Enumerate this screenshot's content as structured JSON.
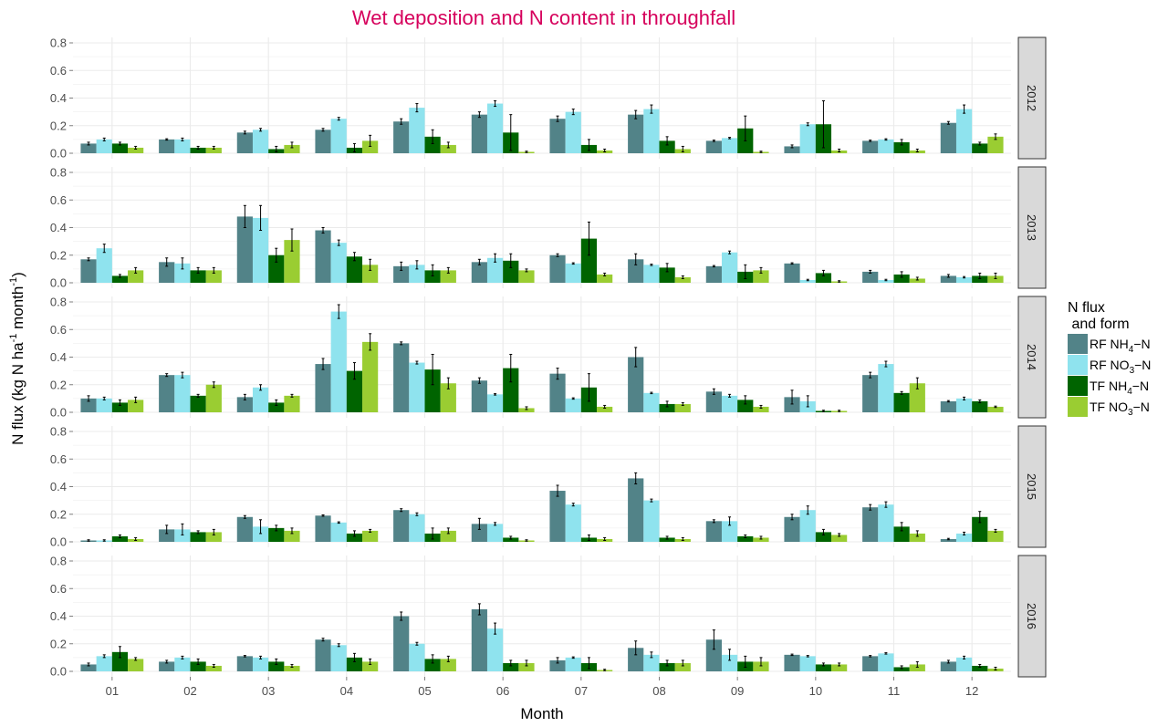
{
  "chart_data": {
    "type": "bar",
    "title": "Wet deposition and N content in throughfall",
    "xlabel": "Month",
    "ylabel_main": "N flux  (kg N ha",
    "ylabel_sup1": "-1",
    "ylabel_mid": " month",
    "ylabel_sup2": "-1",
    "ylabel_end": ")",
    "ylim": [
      0,
      0.8
    ],
    "yticks": [
      "0.0",
      "0.2",
      "0.4",
      "0.6",
      "0.8"
    ],
    "categories": [
      "01",
      "02",
      "03",
      "04",
      "05",
      "06",
      "07",
      "08",
      "09",
      "10",
      "11",
      "12"
    ],
    "grid": true,
    "legend": {
      "title_line1": "N flux",
      "title_line2": " and form",
      "placement": "right",
      "items": [
        {
          "prefix": "RF NH",
          "sub": "4",
          "suffix": "−N",
          "color": "#528388"
        },
        {
          "prefix": "RF NO",
          "sub": "3",
          "suffix": "−N",
          "color": "#8fe3ee"
        },
        {
          "prefix": "TF NH",
          "sub": "4",
          "suffix": "−N",
          "color": "#006400"
        },
        {
          "prefix": "TF NO",
          "sub": "3",
          "suffix": "−N",
          "color": "#9acd32"
        }
      ]
    },
    "panels": [
      {
        "label": "2012",
        "values": [
          [
            0.07,
            0.1,
            0.15,
            0.17,
            0.23,
            0.28,
            0.25,
            0.28,
            0.09,
            0.05,
            0.09,
            0.22
          ],
          [
            0.1,
            0.1,
            0.17,
            0.25,
            0.33,
            0.36,
            0.3,
            0.32,
            0.11,
            0.21,
            0.1,
            0.32
          ],
          [
            0.07,
            0.04,
            0.03,
            0.04,
            0.12,
            0.15,
            0.06,
            0.09,
            0.18,
            0.21,
            0.08,
            0.07
          ],
          [
            0.04,
            0.04,
            0.06,
            0.09,
            0.06,
            0.01,
            0.02,
            0.03,
            0.01,
            0.02,
            0.02,
            0.12
          ]
        ],
        "errors": [
          [
            0.01,
            0.005,
            0.01,
            0.01,
            0.02,
            0.02,
            0.02,
            0.03,
            0.005,
            0.01,
            0.005,
            0.01
          ],
          [
            0.01,
            0.01,
            0.01,
            0.01,
            0.03,
            0.02,
            0.02,
            0.03,
            0.005,
            0.01,
            0.005,
            0.03
          ],
          [
            0.01,
            0.01,
            0.02,
            0.03,
            0.05,
            0.13,
            0.04,
            0.03,
            0.09,
            0.17,
            0.02,
            0.01
          ],
          [
            0.01,
            0.01,
            0.02,
            0.04,
            0.02,
            0.005,
            0.01,
            0.02,
            0.005,
            0.01,
            0.01,
            0.02
          ]
        ]
      },
      {
        "label": "2013",
        "values": [
          [
            0.17,
            0.15,
            0.48,
            0.38,
            0.12,
            0.15,
            0.2,
            0.17,
            0.12,
            0.14,
            0.08,
            0.05
          ],
          [
            0.25,
            0.14,
            0.47,
            0.29,
            0.13,
            0.18,
            0.14,
            0.13,
            0.22,
            0.02,
            0.02,
            0.04
          ],
          [
            0.05,
            0.09,
            0.2,
            0.19,
            0.09,
            0.16,
            0.32,
            0.11,
            0.08,
            0.07,
            0.06,
            0.05
          ],
          [
            0.09,
            0.09,
            0.31,
            0.13,
            0.09,
            0.09,
            0.06,
            0.04,
            0.09,
            0.01,
            0.03,
            0.05
          ]
        ],
        "errors": [
          [
            0.01,
            0.03,
            0.08,
            0.02,
            0.03,
            0.02,
            0.01,
            0.04,
            0.005,
            0.005,
            0.01,
            0.01
          ],
          [
            0.03,
            0.04,
            0.09,
            0.02,
            0.03,
            0.03,
            0.005,
            0.005,
            0.01,
            0.005,
            0.005,
            0.005
          ],
          [
            0.01,
            0.02,
            0.05,
            0.03,
            0.04,
            0.05,
            0.12,
            0.03,
            0.05,
            0.02,
            0.02,
            0.02
          ],
          [
            0.02,
            0.02,
            0.08,
            0.04,
            0.02,
            0.01,
            0.01,
            0.01,
            0.02,
            0.005,
            0.01,
            0.02
          ]
        ]
      },
      {
        "label": "2014",
        "values": [
          [
            0.1,
            0.27,
            0.11,
            0.35,
            0.5,
            0.23,
            0.28,
            0.4,
            0.15,
            0.11,
            0.27,
            0.08
          ],
          [
            0.1,
            0.27,
            0.18,
            0.73,
            0.36,
            0.13,
            0.1,
            0.14,
            0.12,
            0.08,
            0.35,
            0.1
          ],
          [
            0.07,
            0.12,
            0.07,
            0.3,
            0.31,
            0.32,
            0.18,
            0.06,
            0.09,
            0.01,
            0.14,
            0.08
          ],
          [
            0.09,
            0.2,
            0.12,
            0.51,
            0.21,
            0.03,
            0.04,
            0.06,
            0.04,
            0.01,
            0.21,
            0.04
          ]
        ],
        "errors": [
          [
            0.02,
            0.01,
            0.02,
            0.04,
            0.01,
            0.02,
            0.04,
            0.07,
            0.02,
            0.05,
            0.02,
            0.005
          ],
          [
            0.01,
            0.02,
            0.02,
            0.05,
            0.01,
            0.005,
            0.005,
            0.005,
            0.01,
            0.04,
            0.02,
            0.01
          ],
          [
            0.02,
            0.01,
            0.02,
            0.06,
            0.11,
            0.1,
            0.1,
            0.02,
            0.03,
            0.005,
            0.01,
            0.01
          ],
          [
            0.02,
            0.02,
            0.01,
            0.06,
            0.04,
            0.01,
            0.01,
            0.01,
            0.01,
            0.005,
            0.04,
            0.005
          ]
        ]
      },
      {
        "label": "2015",
        "values": [
          [
            0.01,
            0.09,
            0.18,
            0.19,
            0.23,
            0.13,
            0.37,
            0.46,
            0.15,
            0.18,
            0.25,
            0.02
          ],
          [
            0.01,
            0.09,
            0.11,
            0.14,
            0.2,
            0.13,
            0.27,
            0.3,
            0.15,
            0.23,
            0.27,
            0.06
          ],
          [
            0.04,
            0.07,
            0.1,
            0.06,
            0.06,
            0.03,
            0.03,
            0.03,
            0.04,
            0.07,
            0.11,
            0.18
          ],
          [
            0.02,
            0.07,
            0.08,
            0.08,
            0.08,
            0.01,
            0.02,
            0.02,
            0.03,
            0.05,
            0.06,
            0.08
          ]
        ],
        "errors": [
          [
            0.005,
            0.03,
            0.01,
            0.005,
            0.01,
            0.04,
            0.04,
            0.04,
            0.01,
            0.02,
            0.02,
            0.005
          ],
          [
            0.005,
            0.04,
            0.05,
            0.005,
            0.01,
            0.01,
            0.01,
            0.01,
            0.03,
            0.03,
            0.02,
            0.01
          ],
          [
            0.01,
            0.01,
            0.02,
            0.02,
            0.04,
            0.01,
            0.02,
            0.01,
            0.01,
            0.02,
            0.03,
            0.04
          ],
          [
            0.01,
            0.02,
            0.02,
            0.01,
            0.02,
            0.005,
            0.01,
            0.01,
            0.01,
            0.01,
            0.02,
            0.01
          ]
        ]
      },
      {
        "label": "2016",
        "values": [
          [
            0.05,
            0.07,
            0.11,
            0.23,
            0.4,
            0.45,
            0.08,
            0.17,
            0.23,
            0.12,
            0.11,
            0.07
          ],
          [
            0.11,
            0.1,
            0.1,
            0.19,
            0.2,
            0.31,
            0.1,
            0.12,
            0.12,
            0.11,
            0.13,
            0.1
          ],
          [
            0.14,
            0.07,
            0.07,
            0.1,
            0.09,
            0.06,
            0.06,
            0.06,
            0.07,
            0.05,
            0.03,
            0.04
          ],
          [
            0.09,
            0.04,
            0.04,
            0.07,
            0.09,
            0.06,
            0.01,
            0.06,
            0.07,
            0.05,
            0.05,
            0.02
          ]
        ],
        "errors": [
          [
            0.01,
            0.01,
            0.005,
            0.01,
            0.03,
            0.04,
            0.02,
            0.05,
            0.07,
            0.005,
            0.005,
            0.01
          ],
          [
            0.01,
            0.01,
            0.01,
            0.01,
            0.01,
            0.04,
            0.005,
            0.02,
            0.04,
            0.005,
            0.005,
            0.01
          ],
          [
            0.04,
            0.02,
            0.02,
            0.03,
            0.03,
            0.02,
            0.04,
            0.02,
            0.04,
            0.01,
            0.01,
            0.01
          ],
          [
            0.01,
            0.01,
            0.01,
            0.02,
            0.02,
            0.02,
            0.005,
            0.02,
            0.03,
            0.01,
            0.02,
            0.01
          ]
        ]
      }
    ]
  }
}
